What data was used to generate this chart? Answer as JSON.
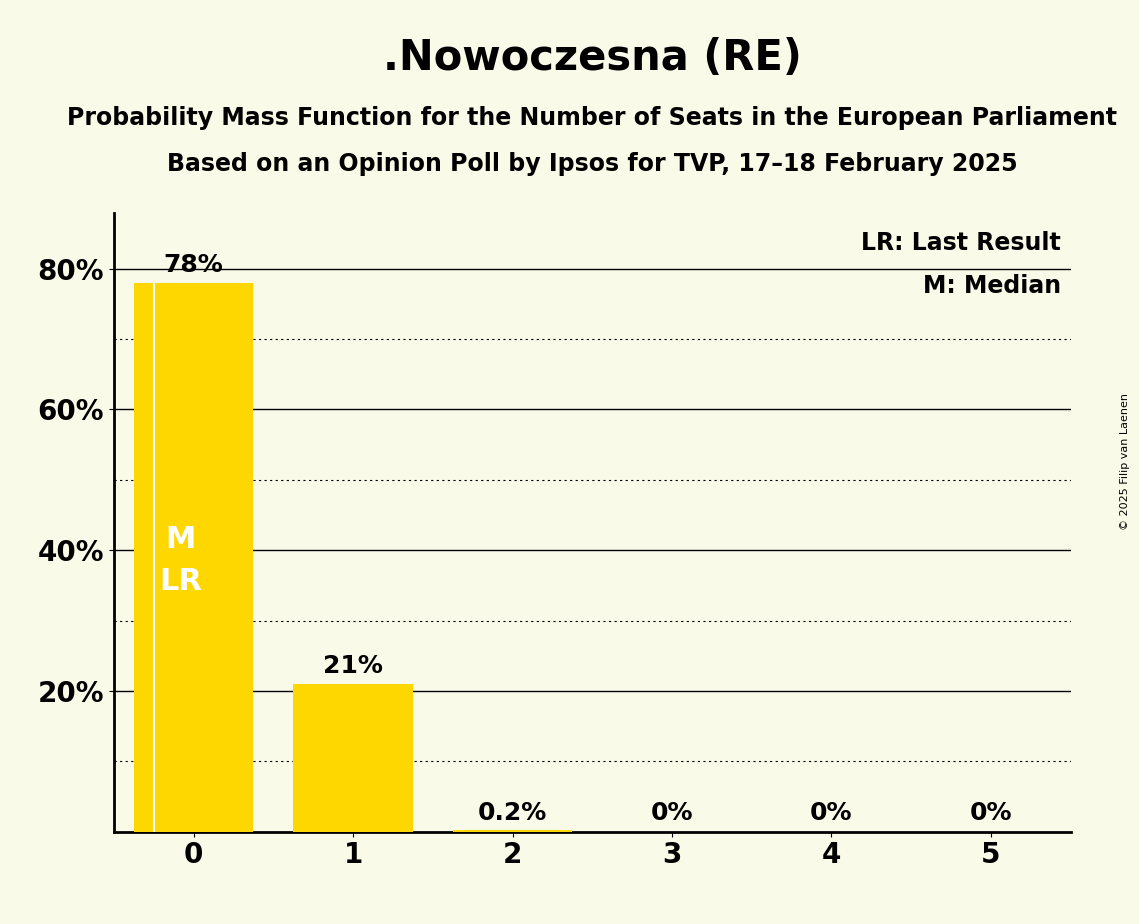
{
  "title": ".Nowoczesna (RE)",
  "subtitle1": "Probability Mass Function for the Number of Seats in the European Parliament",
  "subtitle2": "Based on an Opinion Poll by Ipsos for TVP, 17–18 February 2025",
  "copyright": "© 2025 Filip van Laenen",
  "categories": [
    0,
    1,
    2,
    3,
    4,
    5
  ],
  "values": [
    0.78,
    0.21,
    0.002,
    0.0,
    0.0,
    0.0
  ],
  "bar_labels": [
    "78%",
    "21%",
    "0.2%",
    "0%",
    "0%",
    "0%"
  ],
  "bar_color": "#FFD700",
  "background_color": "#FAFAE8",
  "ylim": [
    0,
    0.88
  ],
  "legend_lr": "LR: Last Result",
  "legend_m": "M: Median",
  "bar_width": 0.75,
  "title_fontsize": 30,
  "subtitle_fontsize": 17,
  "tick_fontsize": 20,
  "annot_fontsize": 18,
  "legend_fontsize": 17,
  "solid_gridlines": [
    0.2,
    0.4,
    0.6,
    0.8
  ],
  "dotted_gridlines": [
    0.1,
    0.3,
    0.5,
    0.7
  ],
  "ytick_positions": [
    0.2,
    0.4,
    0.6,
    0.8
  ],
  "ytick_labels": [
    "20%",
    "40%",
    "60%",
    "80%"
  ]
}
